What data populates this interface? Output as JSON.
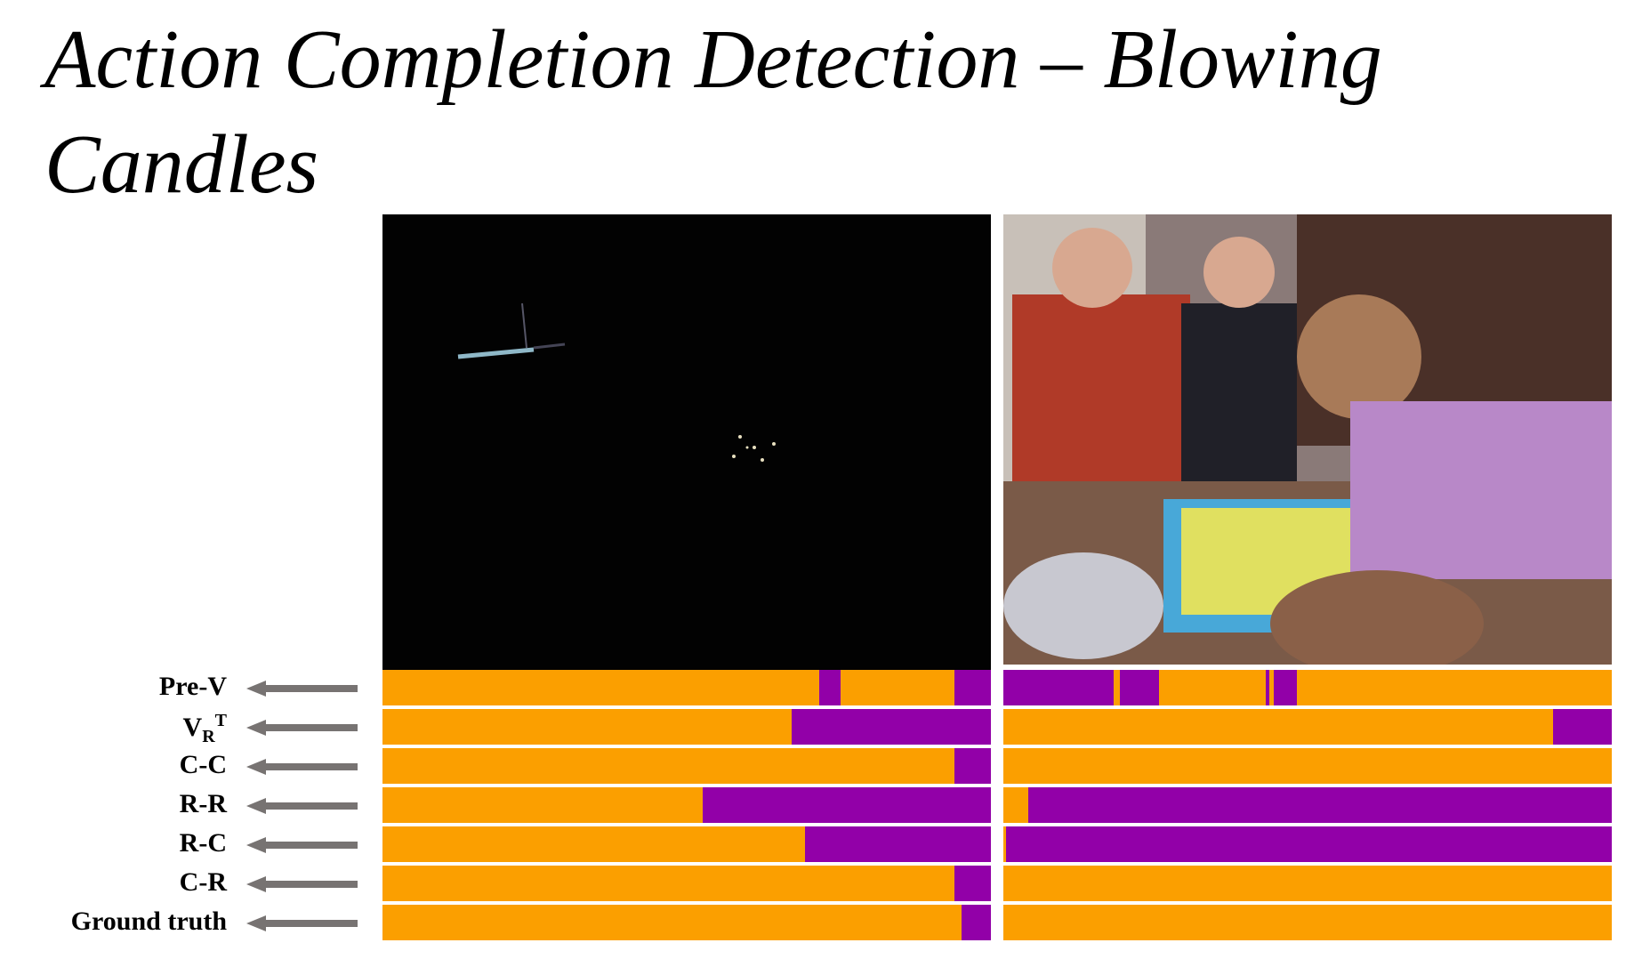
{
  "title": "Action Completion Detection – Blowing Candles",
  "colors": {
    "orange": "#fb9f00",
    "purple": "#9200a8",
    "separator": "#000000",
    "arrow": "#777372"
  },
  "rows": [
    {
      "label": "Pre-V"
    },
    {
      "label": "V",
      "sub": "R",
      "sup": "T"
    },
    {
      "label": "C-C"
    },
    {
      "label": "R-R"
    },
    {
      "label": "R-C"
    },
    {
      "label": "C-R"
    },
    {
      "label": "Ground truth"
    }
  ],
  "chart_data": {
    "type": "bar",
    "subtype": "timeline-segments",
    "title": "",
    "xlim": [
      0,
      100
    ],
    "row_labels": [
      "Pre-V",
      "V_R^T",
      "C-C",
      "R-R",
      "R-C",
      "C-R",
      "Ground truth"
    ],
    "videos": [
      {
        "panel": "left",
        "rows": [
          [
            [
              "orange",
              0,
              71.8
            ],
            [
              "purple",
              71.8,
              75.3
            ],
            [
              "orange",
              75.3,
              94.0
            ],
            [
              "purple",
              94.0,
              100
            ]
          ],
          [
            [
              "orange",
              0,
              67.2
            ],
            [
              "purple",
              67.2,
              100
            ]
          ],
          [
            [
              "orange",
              0,
              94.0
            ],
            [
              "purple",
              94.0,
              100
            ]
          ],
          [
            [
              "orange",
              0,
              52.6
            ],
            [
              "purple",
              52.6,
              100
            ]
          ],
          [
            [
              "orange",
              0,
              69.5
            ],
            [
              "purple",
              69.5,
              100
            ]
          ],
          [
            [
              "orange",
              0,
              94.0
            ],
            [
              "purple",
              94.0,
              100
            ]
          ],
          [
            [
              "orange",
              0,
              95.2
            ],
            [
              "purple",
              95.2,
              100
            ]
          ]
        ]
      },
      {
        "panel": "right",
        "rows": [
          [
            [
              "purple",
              0,
              18.1
            ],
            [
              "orange",
              18.1,
              19.1
            ],
            [
              "purple",
              19.1,
              25.6
            ],
            [
              "orange",
              25.6,
              43.2
            ],
            [
              "purple",
              43.2,
              43.7
            ],
            [
              "orange",
              43.7,
              44.4
            ],
            [
              "purple",
              44.4,
              48.3
            ],
            [
              "orange",
              48.3,
              100
            ]
          ],
          [
            [
              "orange",
              0,
              90.4
            ],
            [
              "purple",
              90.4,
              100
            ]
          ],
          [
            [
              "orange",
              0,
              100
            ]
          ],
          [
            [
              "orange",
              0,
              4.1
            ],
            [
              "purple",
              4.1,
              100
            ]
          ],
          [
            [
              "orange",
              0,
              0.5
            ],
            [
              "purple",
              0.5,
              100
            ]
          ],
          [
            [
              "orange",
              0,
              100
            ]
          ],
          [
            [
              "orange",
              0,
              100
            ]
          ]
        ]
      }
    ]
  }
}
